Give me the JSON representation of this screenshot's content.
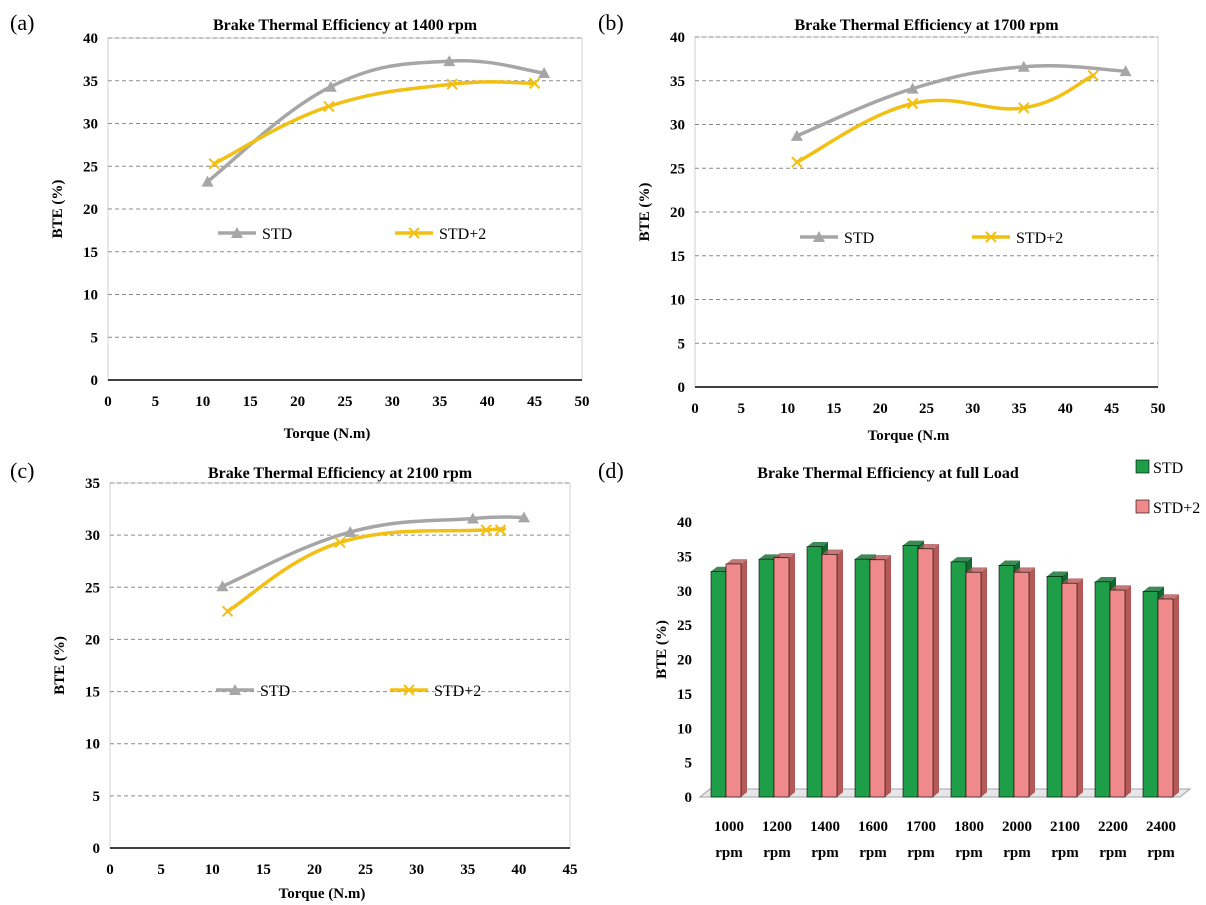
{
  "colors": {
    "std_line": "#A6A6A6",
    "std_plus2_line": "#F2BF13",
    "grid": "#8C8C8C",
    "bar_std": "#1E9E48",
    "bar_std_side": "#0E6B2E",
    "bar_std_plus2": "#F08A8A",
    "bar_std_plus2_side": "#B55858"
  },
  "panels": {
    "a": {
      "letter": "(a)"
    },
    "b": {
      "letter": "(b)"
    },
    "c": {
      "letter": "(c)"
    },
    "d": {
      "letter": "(d)"
    }
  },
  "chart_data": [
    {
      "id": "a",
      "type": "line",
      "title": "Brake Thermal Efficiency at 1400 rpm",
      "xlabel": "Torque (N.m)",
      "ylabel": "BTE (%)",
      "xlim": [
        0,
        50
      ],
      "ylim": [
        0,
        40
      ],
      "xticks": [
        0,
        5,
        10,
        15,
        20,
        25,
        30,
        35,
        40,
        45,
        50
      ],
      "yticks": [
        0,
        5,
        10,
        15,
        20,
        25,
        30,
        35,
        40
      ],
      "grid": "horizontal dashed",
      "legend": "middle",
      "series": [
        {
          "name": "STD",
          "marker": "triangle",
          "x": [
            10.5,
            23.5,
            36,
            46
          ],
          "y": [
            23.2,
            34.3,
            37.3,
            35.9
          ]
        },
        {
          "name": "STD+2",
          "marker": "x",
          "x": [
            11.2,
            23.3,
            36.3,
            45
          ],
          "y": [
            25.3,
            32,
            34.6,
            34.7
          ]
        }
      ]
    },
    {
      "id": "b",
      "type": "line",
      "title": "Brake Thermal Efficiency at 1700 rpm",
      "xlabel": "Torque (N.m",
      "ylabel": "BTE (%)",
      "xlim": [
        0,
        50
      ],
      "ylim": [
        0,
        40
      ],
      "xticks": [
        0,
        5,
        10,
        15,
        20,
        25,
        30,
        35,
        40,
        45,
        50
      ],
      "yticks": [
        0,
        5,
        10,
        15,
        20,
        25,
        30,
        35,
        40
      ],
      "grid": "horizontal dashed",
      "legend": "middle",
      "series": [
        {
          "name": "STD",
          "marker": "triangle",
          "x": [
            11,
            23.5,
            35.5,
            46.5
          ],
          "y": [
            28.7,
            34.1,
            36.6,
            36.1
          ]
        },
        {
          "name": "STD+2",
          "marker": "x",
          "x": [
            11,
            23.5,
            35.5,
            43
          ],
          "y": [
            25.7,
            32.4,
            31.9,
            35.6
          ]
        }
      ]
    },
    {
      "id": "c",
      "type": "line",
      "title": "Brake Thermal Efficiency at 2100 rpm",
      "xlabel": "Torque (N.m)",
      "ylabel": "BTE (%)",
      "xlim": [
        0,
        45
      ],
      "ylim": [
        0,
        35
      ],
      "xticks": [
        0,
        5,
        10,
        15,
        20,
        25,
        30,
        35,
        40,
        45
      ],
      "yticks": [
        0,
        5,
        10,
        15,
        20,
        25,
        30,
        35
      ],
      "grid": "horizontal dashed",
      "legend": "middle",
      "series": [
        {
          "name": "STD",
          "marker": "triangle",
          "x": [
            11,
            23.5,
            35.5,
            40.5
          ],
          "y": [
            25.1,
            30.3,
            31.6,
            31.7
          ]
        },
        {
          "name": "STD+2",
          "marker": "x",
          "x": [
            11.5,
            22.5,
            36.8,
            38.2
          ],
          "y": [
            22.7,
            29.3,
            30.5,
            30.5
          ]
        }
      ]
    },
    {
      "id": "d",
      "type": "bar",
      "title": "Brake Thermal Efficiency at full Load",
      "xlabel": "",
      "ylabel": "BTE (%)",
      "ylim": [
        0,
        40
      ],
      "yticks": [
        0,
        5,
        10,
        15,
        20,
        25,
        30,
        35,
        40
      ],
      "legend": "top-right",
      "categories": [
        [
          "1000",
          "rpm"
        ],
        [
          "1200",
          "rpm"
        ],
        [
          "1400",
          "rpm"
        ],
        [
          "1600",
          "rpm"
        ],
        [
          "1700",
          "rpm"
        ],
        [
          "1800",
          "rpm"
        ],
        [
          "2000",
          "rpm"
        ],
        [
          "2100",
          "rpm"
        ],
        [
          "2200",
          "rpm"
        ],
        [
          "2400",
          "rpm"
        ]
      ],
      "series": [
        {
          "name": "STD",
          "values": [
            32.8,
            34.6,
            36.4,
            34.6,
            36.6,
            34.2,
            33.7,
            32.1,
            31.3,
            29.9
          ]
        },
        {
          "name": "STD+2",
          "values": [
            33.9,
            34.8,
            35.3,
            34.5,
            36.1,
            32.7,
            32.7,
            31.1,
            30.1,
            28.8
          ]
        }
      ]
    }
  ]
}
